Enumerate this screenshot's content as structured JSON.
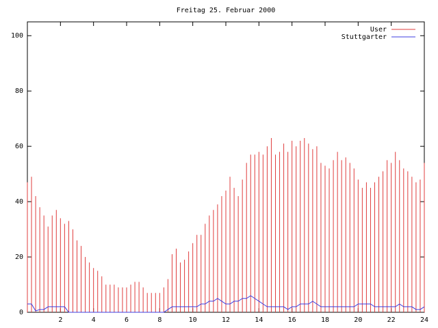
{
  "chart_data": {
    "type": "impulse-line",
    "title": "Freitag 25. Februar 2000",
    "x": [
      0,
      0.25,
      0.5,
      0.75,
      1,
      1.25,
      1.5,
      1.75,
      2,
      2.25,
      2.5,
      2.75,
      3,
      3.25,
      3.5,
      3.75,
      4,
      4.25,
      4.5,
      4.75,
      5,
      5.25,
      5.5,
      5.75,
      6,
      6.25,
      6.5,
      6.75,
      7,
      7.25,
      7.5,
      7.75,
      8,
      8.25,
      8.5,
      8.75,
      9,
      9.25,
      9.5,
      9.75,
      10,
      10.25,
      10.5,
      10.75,
      11,
      11.25,
      11.5,
      11.75,
      12,
      12.25,
      12.5,
      12.75,
      13,
      13.25,
      13.5,
      13.75,
      14,
      14.25,
      14.5,
      14.75,
      15,
      15.25,
      15.5,
      15.75,
      16,
      16.25,
      16.5,
      16.75,
      17,
      17.25,
      17.5,
      17.75,
      18,
      18.25,
      18.5,
      18.75,
      19,
      19.25,
      19.5,
      19.75,
      20,
      20.25,
      20.5,
      20.75,
      21,
      21.25,
      21.5,
      21.75,
      22,
      22.25,
      22.5,
      22.75,
      23,
      23.25,
      23.5,
      23.75,
      24
    ],
    "series": [
      {
        "name": "User",
        "color": "#e03c3c",
        "style": "impulses",
        "values": [
          47,
          49,
          42,
          38,
          35,
          31,
          35,
          37,
          34,
          32,
          33,
          30,
          26,
          24,
          20,
          18,
          16,
          15,
          13,
          10,
          10,
          10,
          9,
          9,
          9,
          10,
          11,
          11,
          9,
          7,
          7,
          7,
          7,
          9,
          12,
          21,
          23,
          18,
          19,
          22,
          25,
          28,
          28,
          32,
          35,
          37,
          39,
          42,
          44,
          49,
          45,
          42,
          48,
          54,
          57,
          57,
          58,
          57,
          60,
          63,
          57,
          58,
          61,
          58,
          62,
          60,
          62,
          63,
          61,
          59,
          60,
          54,
          53,
          52,
          55,
          58,
          55,
          56,
          54,
          52,
          48,
          45,
          47,
          45,
          47,
          49,
          51,
          55,
          54,
          58,
          55,
          52,
          51,
          49,
          47,
          48,
          54
        ]
      },
      {
        "name": "Stuttgarter",
        "color": "#3c3ce0",
        "style": "line",
        "values": [
          3,
          3,
          0.5,
          1,
          1,
          2,
          2,
          2,
          2,
          2,
          0,
          0,
          0,
          0,
          0,
          0,
          0,
          0,
          0,
          0,
          0,
          0,
          0,
          0,
          0,
          0,
          0,
          0,
          0,
          0,
          0,
          0,
          0,
          0,
          1,
          2,
          2,
          2,
          2,
          2,
          2,
          2,
          3,
          3,
          4,
          4,
          5,
          4,
          3,
          3,
          4,
          4,
          5,
          5,
          6,
          5,
          4,
          3,
          2,
          2,
          2,
          2,
          2,
          1,
          2,
          2,
          3,
          3,
          3,
          4,
          3,
          2,
          2,
          2,
          2,
          2,
          2,
          2,
          2,
          2,
          3,
          3,
          3,
          3,
          2,
          2,
          2,
          2,
          2,
          2,
          3,
          2,
          2,
          2,
          1,
          1,
          2
        ]
      }
    ],
    "xlim": [
      0,
      24
    ],
    "xticks": [
      2,
      4,
      6,
      8,
      10,
      12,
      14,
      16,
      18,
      20,
      22,
      24
    ],
    "ylim": [
      0,
      105
    ],
    "yticks": [
      0,
      20,
      40,
      60,
      80,
      100
    ],
    "legend": "upper right"
  }
}
